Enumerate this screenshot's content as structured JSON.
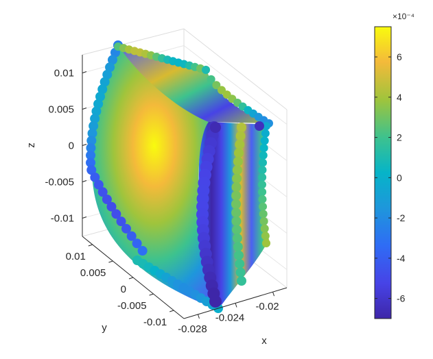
{
  "chart_data": {
    "type": "scatter",
    "dimensions": 3,
    "xlabel": "x",
    "ylabel": "y",
    "zlabel": "z",
    "x_ticks": [
      -0.028,
      -0.024,
      -0.02
    ],
    "x_tick_labels": [
      "-0.028",
      "-0.024",
      "-0.02"
    ],
    "y_ticks": [
      0.01,
      0.005,
      0,
      -0.005,
      -0.01
    ],
    "y_tick_labels": [
      "0.01",
      "0.005",
      "0",
      "-0.005",
      "-0.01"
    ],
    "z_ticks": [
      0.01,
      0.005,
      0,
      -0.005,
      -0.01
    ],
    "z_tick_labels": [
      "0.01",
      "0.005",
      "0",
      "-0.005",
      "-0.01"
    ],
    "xlim": [
      -0.0295,
      -0.0185
    ],
    "ylim": [
      -0.0125,
      0.0125
    ],
    "zlim": [
      -0.0125,
      0.0125
    ],
    "grid": true,
    "colormap": "parula",
    "colorbar": {
      "placement": "right",
      "range": [
        -7.0,
        7.5
      ],
      "ticks": [
        6,
        4,
        2,
        0,
        -2,
        -4,
        -6
      ],
      "tick_labels": [
        "6",
        "4",
        "2",
        "0",
        "-2",
        "-4",
        "-6"
      ],
      "exponent_label": "×10⁻⁴"
    },
    "surfaces": [
      {
        "name": "outer-curved-face",
        "description": "color field of scattered markers on the curved outer face",
        "value_range": [
          -5.5,
          7.0
        ],
        "peak_value": 7.0
      },
      {
        "name": "side-face",
        "value_range": [
          -7.0,
          5.0
        ],
        "low_band_value": -6.5,
        "high_band_value": 4.5
      },
      {
        "name": "top-face",
        "value_range": [
          -5.0,
          5.0
        ]
      }
    ]
  }
}
